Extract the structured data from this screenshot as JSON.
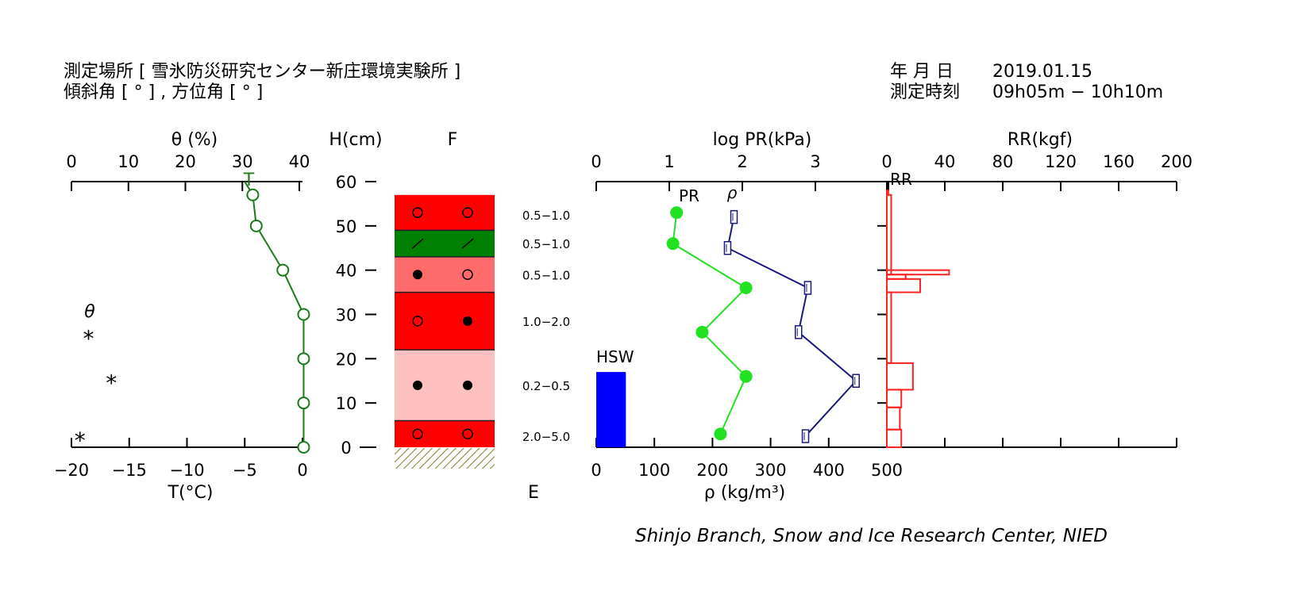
{
  "header": {
    "location_line": "測定場所 [ 雪氷防災研究センター新庄環境実験所 ]",
    "angle_line": "傾斜角 [ ° ] , 方位角 [ ° ]",
    "date_label": "年 月 日",
    "date_value": "2019.01.15",
    "time_label": "測定時刻",
    "time_value": "09h05m − 10h10m"
  },
  "footer": {
    "credit": "Shinjo Branch, Snow and Ice Research Center, NIED"
  },
  "colors": {
    "temp": "#1a7a1a",
    "pr": "#22e022",
    "density": "#1a1a7a",
    "rr": "#ff2020",
    "hsw": "#0000ff",
    "red": "#ff0000",
    "green_layer": "#008000",
    "salmon": "#ff6a6a",
    "pink": "#ffc0c0"
  },
  "chart_data": [
    {
      "type": "line",
      "name": "temperature-moisture-panel",
      "top_axis": {
        "label": "θ (%)",
        "ticks": [
          "0",
          "10",
          "20",
          "30",
          "40"
        ],
        "range": [
          0,
          40
        ]
      },
      "bottom_axis": {
        "label": "T(°C)",
        "ticks": [
          "−20",
          "−15",
          "−10",
          "−5",
          "0"
        ],
        "range": [
          -20,
          0
        ]
      },
      "temp_top_marker": "T",
      "theta_marker_label": "θ",
      "temperature": {
        "height": [
          57,
          50,
          40,
          30,
          20,
          10,
          0
        ],
        "T": [
          -4.3,
          -4.0,
          -1.7,
          0.1,
          0.1,
          0.1,
          0.1
        ]
      },
      "theta": {
        "height": [
          25,
          15,
          2
        ],
        "value": [
          3,
          7,
          1.5
        ],
        "marker": "*"
      }
    },
    {
      "type": "table",
      "name": "stratigraphy-panel",
      "height_axis": {
        "label": "H(cm)",
        "ticks": [
          "0",
          "10",
          "20",
          "30",
          "40",
          "50",
          "60"
        ],
        "range": [
          0,
          60
        ]
      },
      "top_label": "F",
      "bottom_label": "E",
      "layers": [
        {
          "bottom": 49,
          "top": 57,
          "color": "red",
          "grain": [
            "open-circle",
            "open-circle"
          ],
          "size": "0.5−1.0"
        },
        {
          "bottom": 43,
          "top": 49,
          "color": "green_layer",
          "grain": [
            "slash",
            "slash"
          ],
          "size": "0.5−1.0"
        },
        {
          "bottom": 35,
          "top": 43,
          "color": "salmon",
          "grain": [
            "filled-circle",
            "open-circle"
          ],
          "size": "0.5−1.0"
        },
        {
          "bottom": 22,
          "top": 35,
          "color": "red",
          "grain": [
            "open-circle",
            "filled-circle"
          ],
          "size": "1.0−2.0"
        },
        {
          "bottom": 6,
          "top": 22,
          "color": "pink",
          "grain": [
            "filled-circle",
            "filled-circle"
          ],
          "size": "0.2−0.5"
        },
        {
          "bottom": 0,
          "top": 6,
          "color": "red",
          "grain": [
            "open-circle",
            "open-circle"
          ],
          "size": "2.0−5.0"
        }
      ],
      "size_label_heights": [
        52.5,
        46,
        39,
        28.5,
        14,
        2.5
      ]
    },
    {
      "type": "line",
      "name": "pr-density-panel",
      "top_axis": {
        "label": "log PR(kPa)",
        "ticks": [
          "0",
          "1",
          "2",
          "3"
        ],
        "range": [
          0,
          4
        ]
      },
      "bottom_axis": {
        "label": "ρ (kg/m³)",
        "ticks": [
          "0",
          "100",
          "200",
          "300",
          "400",
          "500"
        ],
        "range": [
          0,
          500
        ]
      },
      "hsw": {
        "label": "HSW",
        "value": 51,
        "height": 17
      },
      "pr": {
        "name": "PR",
        "height": [
          53,
          46,
          36,
          26,
          16,
          3
        ],
        "log_pr": [
          1.1,
          1.05,
          2.05,
          1.45,
          2.05,
          1.7
        ]
      },
      "density": {
        "name": "ρ",
        "height": [
          52,
          45,
          36,
          26,
          15,
          2.5
        ],
        "rho": [
          237,
          226,
          364,
          348,
          447,
          360
        ]
      }
    },
    {
      "type": "bar",
      "name": "rr-panel",
      "top_axis": {
        "label": "RR(kgf)",
        "ticks": [
          "0",
          "40",
          "80",
          "120",
          "160",
          "200"
        ],
        "range": [
          0,
          200
        ]
      },
      "series_label": "RR",
      "bars": [
        {
          "bottom": 57,
          "top": 58,
          "value": 1
        },
        {
          "bottom": 39,
          "top": 57,
          "value": 3
        },
        {
          "bottom": 38,
          "top": 39,
          "value": 13
        },
        {
          "bottom": 39,
          "top": 40,
          "value": 43
        },
        {
          "bottom": 35,
          "top": 38,
          "value": 23
        },
        {
          "bottom": 19,
          "top": 35,
          "value": 3
        },
        {
          "bottom": 13,
          "top": 19,
          "value": 18
        },
        {
          "bottom": 9,
          "top": 13,
          "value": 10
        },
        {
          "bottom": 4,
          "top": 9,
          "value": 9
        },
        {
          "bottom": 0,
          "top": 4,
          "value": 10
        }
      ]
    }
  ]
}
